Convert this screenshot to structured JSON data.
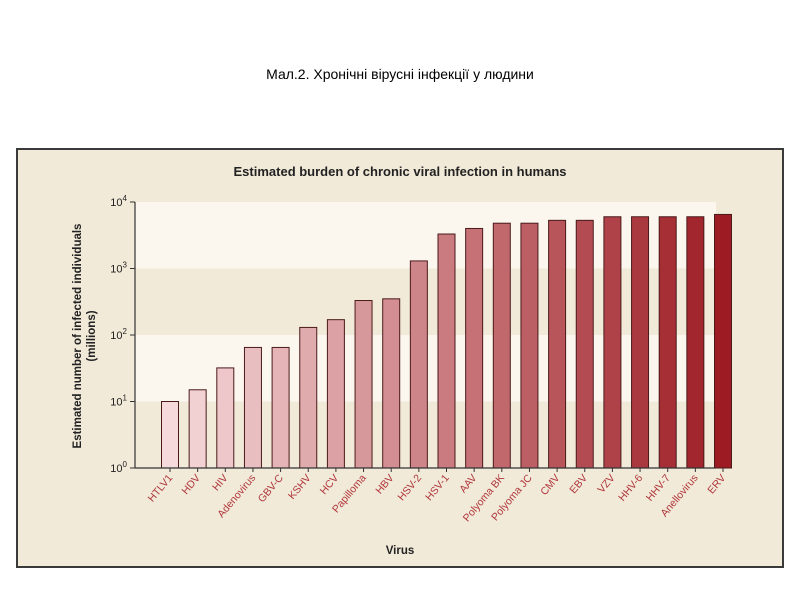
{
  "caption": "Мал.2. Хронічні вірусні інфекції у людини",
  "colors": {
    "panel_bg": "#f2ead9",
    "band_light": "#fbf7ef",
    "bar_light": "#f6dadb",
    "bar_dark": "#9d1c24",
    "category_label": "#b0383c"
  },
  "chart_data": {
    "type": "bar",
    "title": "Estimated burden of chronic viral infection in humans",
    "xlabel": "Virus",
    "ylabel": "Estimated number of infected individuals (millions)",
    "yscale": "log",
    "ylim": [
      1,
      10000
    ],
    "yticks": [
      {
        "base": "10",
        "exp": "0"
      },
      {
        "base": "10",
        "exp": "1"
      },
      {
        "base": "10",
        "exp": "2"
      },
      {
        "base": "10",
        "exp": "3"
      },
      {
        "base": "10",
        "exp": "4"
      }
    ],
    "grid": false,
    "categories": [
      "HTLV1",
      "HDV",
      "HIV",
      "Adenovirus",
      "GBV-C",
      "KSHV",
      "HCV",
      "Papilloma",
      "HBV",
      "HSV-2",
      "HSV-1",
      "AAV",
      "Polyoma BK",
      "Polyoma JC",
      "CMV",
      "EBV",
      "VZV",
      "HHV-6",
      "HHV-7",
      "Anellovirus",
      "ERV"
    ],
    "values": [
      10,
      15,
      32,
      65,
      65,
      130,
      170,
      330,
      350,
      1300,
      3300,
      4000,
      4800,
      4800,
      5300,
      5300,
      6000,
      6000,
      6000,
      6000,
      6500
    ]
  }
}
